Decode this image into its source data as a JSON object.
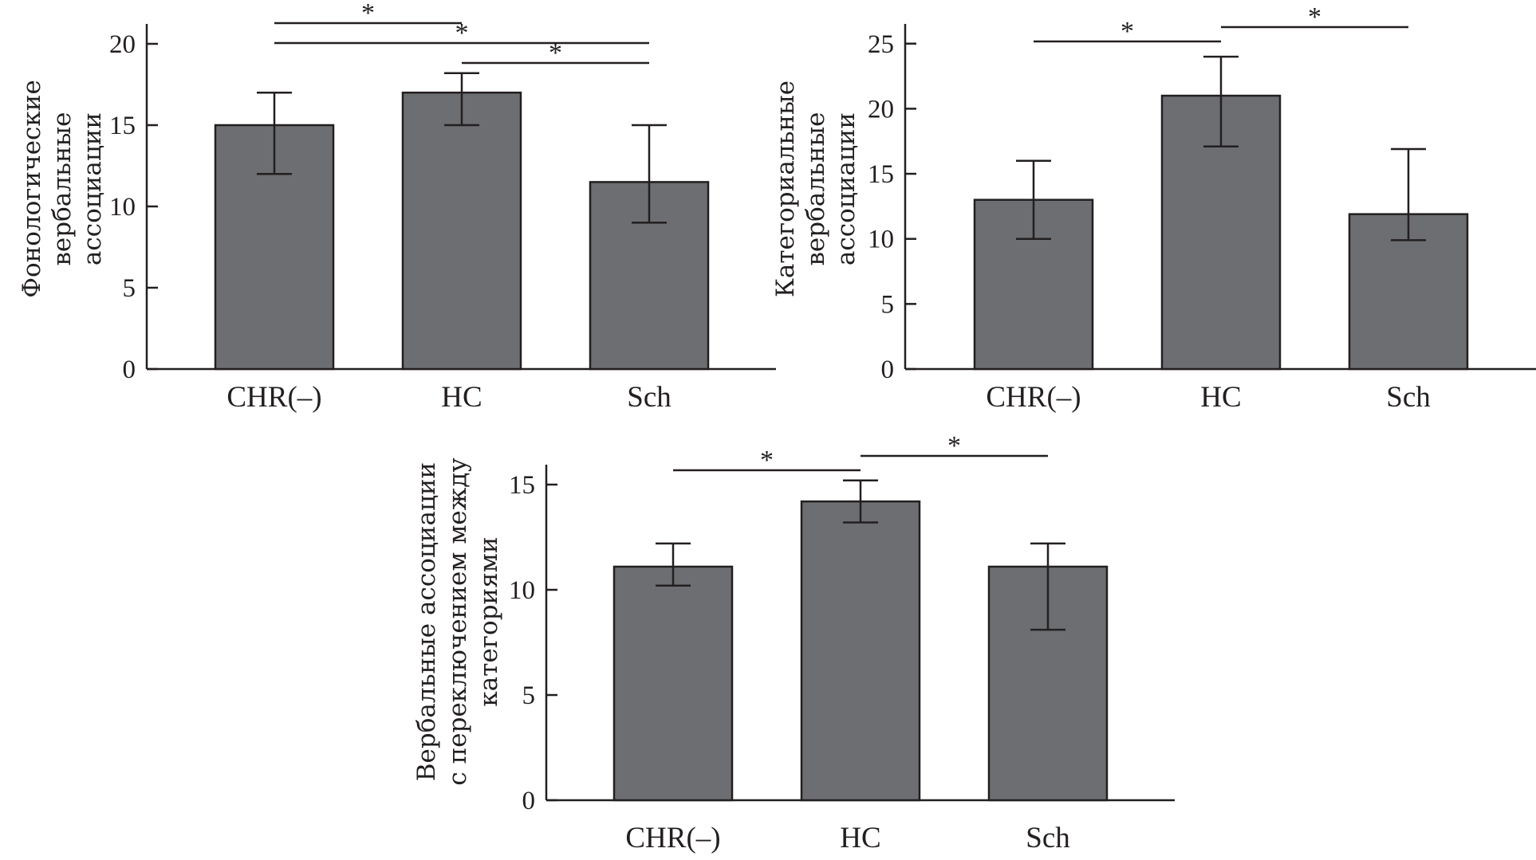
{
  "chart_data": [
    {
      "type": "bar",
      "title": "",
      "ylabel_lines": [
        "Фонологические",
        "вербальные",
        "ассоциации"
      ],
      "xlabel": "",
      "categories": [
        "CHR(–)",
        "HC",
        "Sch"
      ],
      "values": [
        15.0,
        17.0,
        11.5
      ],
      "error_low": [
        12.0,
        15.0,
        9.0
      ],
      "error_high": [
        17.0,
        18.2,
        15.0
      ],
      "ylim": [
        0,
        21
      ],
      "yticks": [
        0,
        5,
        10,
        15,
        20
      ],
      "grid": false,
      "significance": [
        {
          "from": "CHR(–)",
          "to": "HC",
          "label": "*"
        },
        {
          "from": "CHR(–)",
          "to": "Sch",
          "label": "*"
        },
        {
          "from": "HC",
          "to": "Sch",
          "label": "*"
        }
      ]
    },
    {
      "type": "bar",
      "title": "",
      "ylabel_lines": [
        "Категориальные",
        "вербальные",
        "ассоциации"
      ],
      "xlabel": "",
      "categories": [
        "CHR(–)",
        "HC",
        "Sch"
      ],
      "values": [
        13.0,
        21.0,
        11.9
      ],
      "error_low": [
        10.0,
        17.1,
        9.9
      ],
      "error_high": [
        16.0,
        24.0,
        16.9
      ],
      "ylim": [
        0,
        27
      ],
      "yticks": [
        0,
        5,
        10,
        15,
        20,
        25
      ],
      "grid": false,
      "significance": [
        {
          "from": "CHR(–)",
          "to": "HC",
          "label": "*"
        },
        {
          "from": "HC",
          "to": "Sch",
          "label": "*"
        }
      ]
    },
    {
      "type": "bar",
      "title": "",
      "ylabel_lines": [
        "Вербальные ассоциации",
        "с переключением между",
        "категориями"
      ],
      "xlabel": "",
      "categories": [
        "CHR(–)",
        "HC",
        "Sch"
      ],
      "values": [
        11.1,
        14.2,
        11.1
      ],
      "error_low": [
        10.2,
        13.2,
        8.1
      ],
      "error_high": [
        12.2,
        15.2,
        12.2
      ],
      "ylim": [
        0,
        16
      ],
      "yticks": [
        0,
        5,
        10,
        15
      ],
      "grid": false,
      "significance": [
        {
          "from": "CHR(–)",
          "to": "HC",
          "label": "*"
        },
        {
          "from": "HC",
          "to": "Sch",
          "label": "*"
        }
      ]
    }
  ],
  "colors": {
    "bar_fill": "#6d6e71",
    "stroke": "#231f20"
  }
}
